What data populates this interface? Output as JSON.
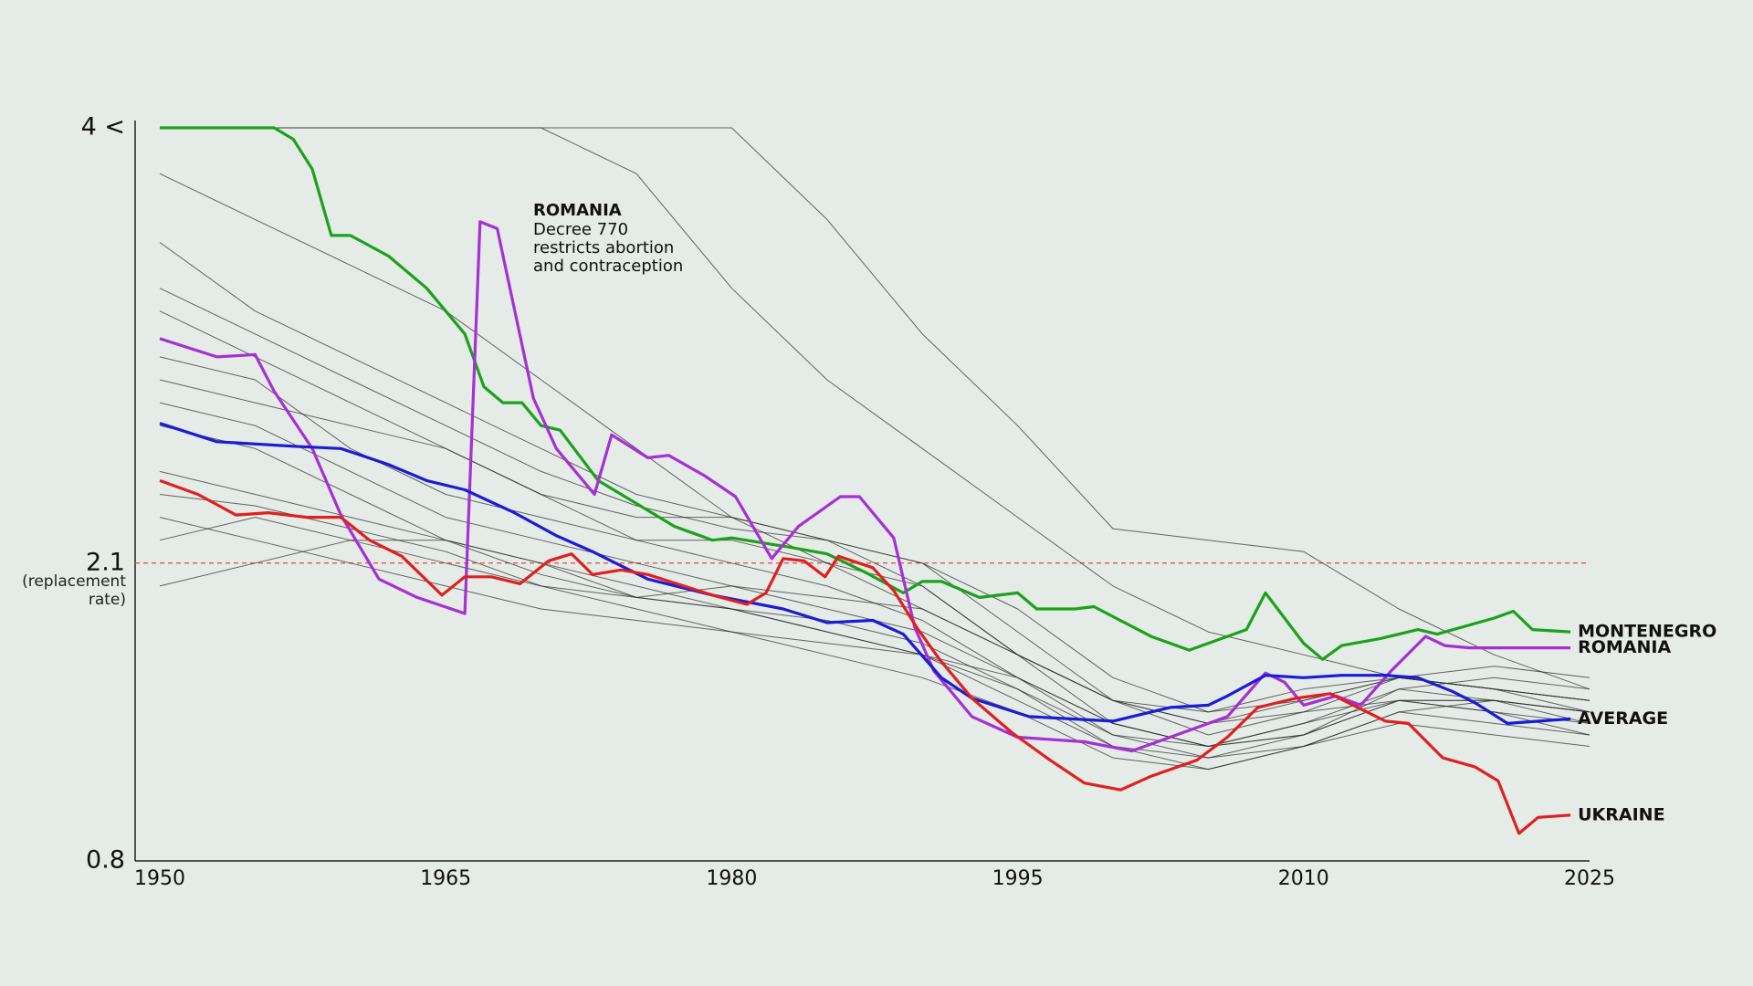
{
  "chart_data": {
    "type": "line",
    "xlim": [
      1950,
      2025
    ],
    "xticks": [
      1950,
      1965,
      1980,
      1995,
      2010,
      2025
    ],
    "ylim": [
      0.8,
      4
    ],
    "yticks": [
      0.8,
      2.1,
      {
        "value": 4,
        "label": "4 <"
      }
    ],
    "replacement_note": "(replacement rate)",
    "reference_line": {
      "value": 2.1,
      "color": "#e04848",
      "dashed": true
    },
    "annotation": {
      "title": "ROMANIA",
      "lines": [
        "Decree 770",
        "restricts abortion",
        "and contraception"
      ],
      "color": "#a62fd6"
    },
    "x": [
      1950,
      1955,
      1960,
      1965,
      1970,
      1975,
      1980,
      1985,
      1990,
      1995,
      2000,
      2005,
      2010,
      2015,
      2020,
      2025
    ],
    "series": [
      {
        "color": "#2a2a2a",
        "values": [
          4,
          4,
          4,
          4,
          4,
          4,
          4,
          3.6,
          3.1,
          2.7,
          2.25,
          2.2,
          2.15,
          1.9,
          1.7,
          1.55
        ]
      },
      {
        "color": "#2a2a2a",
        "values": [
          4,
          4,
          4,
          4,
          4,
          3.8,
          3.3,
          2.9,
          2.6,
          2.3,
          2.0,
          1.8,
          1.7,
          1.6,
          1.55,
          1.5
        ]
      },
      {
        "color": "#2a2a2a",
        "values": [
          3.8,
          3.6,
          3.4,
          3.2,
          2.9,
          2.6,
          2.3,
          2.1,
          1.9,
          1.7,
          1.5,
          1.4,
          1.5,
          1.6,
          1.55,
          1.45
        ]
      },
      {
        "color": "#2a2a2a",
        "values": [
          3.5,
          3.2,
          3.0,
          2.8,
          2.6,
          2.4,
          2.3,
          2.2,
          2.1,
          1.8,
          1.5,
          1.4,
          1.45,
          1.5,
          1.5,
          1.45
        ]
      },
      {
        "color": "#2a2a2a",
        "values": [
          3.2,
          3.0,
          2.8,
          2.6,
          2.4,
          2.3,
          2.3,
          2.2,
          2.0,
          1.7,
          1.4,
          1.3,
          1.4,
          1.5,
          1.5,
          1.4
        ]
      },
      {
        "color": "#2a2a2a",
        "values": [
          3.0,
          2.9,
          2.6,
          2.4,
          2.3,
          2.2,
          2.2,
          2.1,
          2.0,
          1.7,
          1.5,
          1.35,
          1.45,
          1.6,
          1.55,
          1.5
        ]
      },
      {
        "color": "#2a2a2a",
        "values": [
          2.8,
          2.7,
          2.5,
          2.3,
          2.2,
          2.1,
          2.0,
          1.9,
          1.8,
          1.6,
          1.35,
          1.25,
          1.3,
          1.45,
          1.4,
          1.35
        ]
      },
      {
        "color": "#2a2a2a",
        "values": [
          2.7,
          2.6,
          2.4,
          2.2,
          2.05,
          1.95,
          1.9,
          1.8,
          1.7,
          1.5,
          1.3,
          1.2,
          1.3,
          1.4,
          1.35,
          1.3
        ]
      },
      {
        "color": "#2a2a2a",
        "values": [
          2.5,
          2.4,
          2.3,
          2.2,
          2.1,
          2.0,
          1.9,
          1.85,
          1.75,
          1.55,
          1.3,
          1.25,
          1.35,
          1.55,
          1.6,
          1.55
        ]
      },
      {
        "color": "#2a2a2a",
        "values": [
          2.4,
          2.35,
          2.25,
          2.15,
          2.0,
          1.9,
          1.8,
          1.7,
          1.6,
          1.45,
          1.25,
          1.2,
          1.3,
          1.45,
          1.5,
          1.45
        ]
      },
      {
        "color": "#2a2a2a",
        "values": [
          2.3,
          2.2,
          2.1,
          2.0,
          1.9,
          1.85,
          1.8,
          1.75,
          1.7,
          1.6,
          1.4,
          1.3,
          1.35,
          1.5,
          1.45,
          1.4
        ]
      },
      {
        "color": "#2a2a2a",
        "values": [
          2.2,
          2.3,
          2.2,
          2.1,
          2.0,
          1.95,
          2.0,
          1.95,
          1.9,
          1.7,
          1.5,
          1.45,
          1.5,
          1.6,
          1.65,
          1.6
        ]
      },
      {
        "color": "#2a2a2a",
        "values": [
          2.0,
          2.1,
          2.2,
          2.2,
          2.1,
          1.95,
          1.9,
          1.8,
          1.7,
          1.55,
          1.35,
          1.3,
          1.4,
          1.55,
          1.5,
          1.45
        ]
      },
      {
        "color": "#2a2a2a",
        "values": [
          3.3,
          3.1,
          2.9,
          2.7,
          2.5,
          2.35,
          2.25,
          2.2,
          2.1,
          1.9,
          1.6,
          1.45,
          1.55,
          1.6,
          1.55,
          1.5
        ]
      },
      {
        "color": "#2a2a2a",
        "values": [
          2.9,
          2.8,
          2.7,
          2.6,
          2.4,
          2.2,
          2.1,
          2.0,
          1.85,
          1.6,
          1.4,
          1.3,
          1.35,
          1.5,
          1.45,
          1.35
        ]
      },
      {
        "name": "MONTENEGRO",
        "color": "#1aa31a",
        "x": [
          1950,
          1956,
          1957,
          1958,
          1959,
          1960,
          1962,
          1964,
          1966,
          1967,
          1968,
          1969,
          1970,
          1971,
          1973,
          1975,
          1977,
          1979,
          1980,
          1983,
          1985,
          1987,
          1989,
          1990,
          1991,
          1993,
          1995,
          1996,
          1998,
          1999,
          2002,
          2004,
          2005,
          2007,
          2008,
          2010,
          2011,
          2012,
          2014,
          2016,
          2017,
          2020,
          2021,
          2022,
          2024
        ],
        "values": [
          4,
          4,
          3.95,
          3.82,
          3.53,
          3.53,
          3.44,
          3.3,
          3.1,
          2.87,
          2.8,
          2.8,
          2.7,
          2.68,
          2.46,
          2.36,
          2.26,
          2.2,
          2.21,
          2.17,
          2.14,
          2.06,
          1.97,
          2.02,
          2.02,
          1.95,
          1.97,
          1.9,
          1.9,
          1.91,
          1.78,
          1.72,
          1.75,
          1.81,
          1.97,
          1.75,
          1.68,
          1.74,
          1.77,
          1.81,
          1.79,
          1.86,
          1.89,
          1.81,
          1.8
        ]
      },
      {
        "name": "ROMANIA",
        "color": "#a62fd6",
        "x": [
          1950,
          1953,
          1955,
          1956,
          1958,
          1959.5,
          1961.5,
          1963.5,
          1966,
          1966.8,
          1967.7,
          1969.6,
          1970.8,
          1972.8,
          1973.7,
          1975.6,
          1976.7,
          1978.6,
          1980.2,
          1982.1,
          1983.5,
          1985.7,
          1986.7,
          1988.5,
          1989.6,
          1990.6,
          1992.6,
          1995,
          1998.5,
          2001,
          2003,
          2006,
          2008,
          2009,
          2010,
          2011.7,
          2013,
          2014.6,
          2016.4,
          2017.4,
          2018.7,
          2024
        ],
        "values": [
          3.08,
          3.0,
          3.01,
          2.85,
          2.6,
          2.31,
          2.03,
          1.95,
          1.88,
          3.59,
          3.56,
          2.82,
          2.6,
          2.4,
          2.66,
          2.56,
          2.57,
          2.48,
          2.39,
          2.12,
          2.26,
          2.39,
          2.39,
          2.21,
          1.82,
          1.63,
          1.43,
          1.34,
          1.32,
          1.28,
          1.34,
          1.43,
          1.62,
          1.58,
          1.48,
          1.52,
          1.48,
          1.63,
          1.78,
          1.74,
          1.73,
          1.73
        ]
      },
      {
        "name": "AVERAGE",
        "color": "#1c1cd6",
        "x": [
          1950,
          1953,
          1957,
          1959.5,
          1962,
          1964,
          1966,
          1968.6,
          1970.8,
          1972.7,
          1975.6,
          1979,
          1982.7,
          1985,
          1987.4,
          1989,
          1991,
          1992.6,
          1995.6,
          2000,
          2003,
          2005,
          2006,
          2008,
          2010,
          2012,
          2014.3,
          2016,
          2017.8,
          2019,
          2020.7,
          2024
        ],
        "values": [
          2.71,
          2.63,
          2.61,
          2.6,
          2.53,
          2.46,
          2.42,
          2.32,
          2.22,
          2.15,
          2.03,
          1.96,
          1.9,
          1.84,
          1.85,
          1.79,
          1.6,
          1.51,
          1.43,
          1.41,
          1.47,
          1.48,
          1.52,
          1.61,
          1.6,
          1.61,
          1.61,
          1.6,
          1.54,
          1.49,
          1.4,
          1.42
        ]
      },
      {
        "name": "UKRAINE",
        "color": "#e02020",
        "x": [
          1950,
          1952,
          1954,
          1955.7,
          1957.7,
          1959.5,
          1961,
          1962.7,
          1964.8,
          1966,
          1967.4,
          1968.9,
          1970.4,
          1971.6,
          1972.7,
          1974.2,
          1975.6,
          1979,
          1980.8,
          1981.8,
          1982.7,
          1983.8,
          1984.9,
          1985.6,
          1987.4,
          1988.5,
          1989.7,
          1990.9,
          1992.6,
          1994.7,
          1996.7,
          1998.5,
          2000.4,
          2002,
          2004.4,
          2006,
          2007.6,
          2009.6,
          2011.4,
          2012.6,
          2014.3,
          2015.5,
          2017.3,
          2019,
          2020.2,
          2021.3,
          2022.3,
          2024
        ],
        "values": [
          2.46,
          2.4,
          2.31,
          2.32,
          2.3,
          2.3,
          2.2,
          2.13,
          1.96,
          2.04,
          2.04,
          2.01,
          2.11,
          2.14,
          2.05,
          2.07,
          2.05,
          1.96,
          1.92,
          1.97,
          2.12,
          2.11,
          2.04,
          2.13,
          2.08,
          1.98,
          1.82,
          1.68,
          1.51,
          1.36,
          1.24,
          1.14,
          1.11,
          1.17,
          1.24,
          1.34,
          1.47,
          1.51,
          1.53,
          1.48,
          1.41,
          1.4,
          1.25,
          1.21,
          1.15,
          0.92,
          0.99,
          1.0
        ]
      }
    ]
  }
}
